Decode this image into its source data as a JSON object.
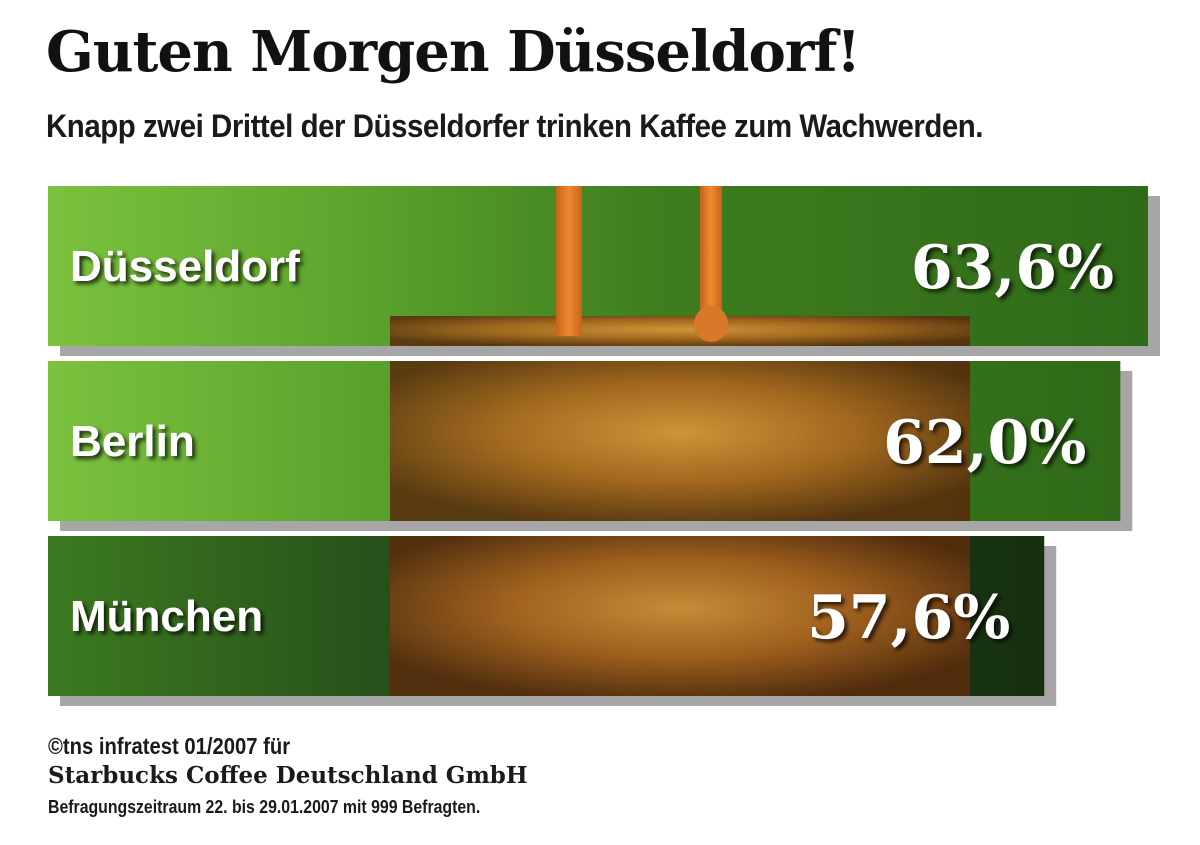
{
  "title": "Guten Morgen Düsseldorf!",
  "subtitle": "Knapp zwei Drittel der Düsseldorfer trinken Kaffee zum Wachwerden.",
  "chart_data": {
    "type": "bar",
    "orientation": "horizontal",
    "categories": [
      "Düsseldorf",
      "Berlin",
      "München"
    ],
    "values": [
      63.6,
      62.0,
      57.6
    ],
    "value_labels": [
      "63,6%",
      "62,0%",
      "57,6%"
    ],
    "unit": "%",
    "colors": {
      "bar_green": "#4e9a2a",
      "bar_dark": "#1f3d10",
      "coffee": "#b5661f",
      "label": "#ffffff"
    }
  },
  "footer": {
    "line1": "©tns infratest 01/2007 für",
    "line2": "Starbucks Coffee Deutschland GmbH",
    "line3": "Befragungszeitraum 22. bis 29.01.2007 mit 999 Befragten."
  }
}
